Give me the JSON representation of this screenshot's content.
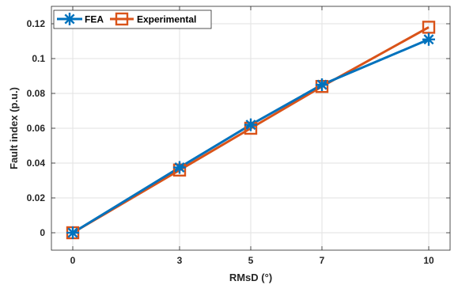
{
  "chart_data": {
    "type": "line",
    "xlabel": "RMsD (°)",
    "ylabel": "Fault index (p.u.)",
    "x": [
      0,
      3,
      5,
      7,
      10
    ],
    "xlim": [
      -0.6,
      10.6
    ],
    "ylim": [
      -0.01,
      0.13
    ],
    "xticks": [
      0,
      3,
      5,
      7,
      10
    ],
    "xtick_labels": [
      "0",
      "3",
      "5",
      "7",
      "10"
    ],
    "yticks": [
      0,
      0.02,
      0.04,
      0.06,
      0.08,
      0.1,
      0.12
    ],
    "ytick_labels": [
      "0",
      "0.02",
      "0.04",
      "0.06",
      "0.08",
      "0.1",
      "0.12"
    ],
    "grid": true,
    "legend_position": "top-left",
    "series": [
      {
        "name": "FEA",
        "color": "#0072BD",
        "marker": "asterisk",
        "values": [
          0,
          0.0375,
          0.062,
          0.085,
          0.111
        ]
      },
      {
        "name": "Experimental",
        "color": "#D95319",
        "marker": "square",
        "values": [
          0,
          0.036,
          0.06,
          0.084,
          0.118
        ]
      }
    ]
  }
}
